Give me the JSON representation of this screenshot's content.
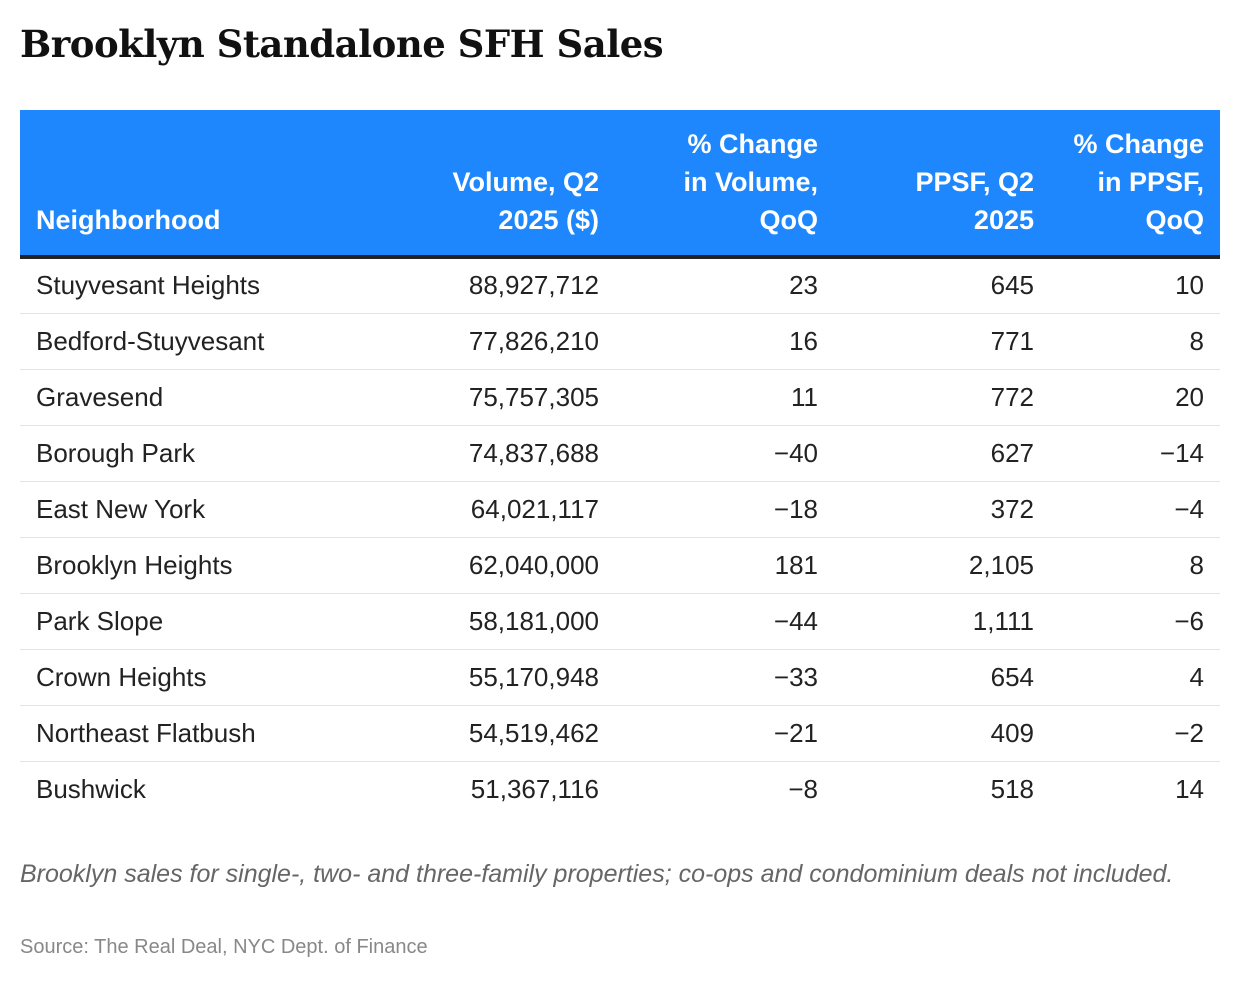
{
  "chart_data": {
    "type": "table",
    "title": "Brooklyn Standalone SFH Sales",
    "columns": [
      [
        "Neighborhood"
      ],
      [
        "Volume, Q2",
        "2025 ($)"
      ],
      [
        "% Change",
        "in Volume,",
        "QoQ"
      ],
      [
        "PPSF, Q2",
        "2025"
      ],
      [
        "% Change",
        "in PPSF,",
        "QoQ"
      ]
    ],
    "rows": [
      [
        "Stuyvesant Heights",
        "88,927,712",
        "23",
        "645",
        "10"
      ],
      [
        "Bedford-Stuyvesant",
        "77,826,210",
        "16",
        "771",
        "8"
      ],
      [
        "Gravesend",
        "75,757,305",
        "11",
        "772",
        "20"
      ],
      [
        "Borough Park",
        "74,837,688",
        "−40",
        "627",
        "−14"
      ],
      [
        "East New York",
        "64,021,117",
        "−18",
        "372",
        "−4"
      ],
      [
        "Brooklyn Heights",
        "62,040,000",
        "181",
        "2,105",
        "8"
      ],
      [
        "Park Slope",
        "58,181,000",
        "−44",
        "1,111",
        "−6"
      ],
      [
        "Crown Heights",
        "55,170,948",
        "−33",
        "654",
        "4"
      ],
      [
        "Northeast Flatbush",
        "54,519,462",
        "−21",
        "409",
        "−2"
      ],
      [
        "Bushwick",
        "51,367,116",
        "−8",
        "518",
        "14"
      ]
    ],
    "note": "Brooklyn sales for single-, two- and three-family properties; co-ops and condominium deals not included.",
    "source": "Source: The Real Deal, NYC Dept. of Finance",
    "colors": {
      "header_background": "#1e87fe",
      "header_text": "#ffffff",
      "body_text": "#222222",
      "note_text": "#666666",
      "source_text": "#888888"
    }
  }
}
